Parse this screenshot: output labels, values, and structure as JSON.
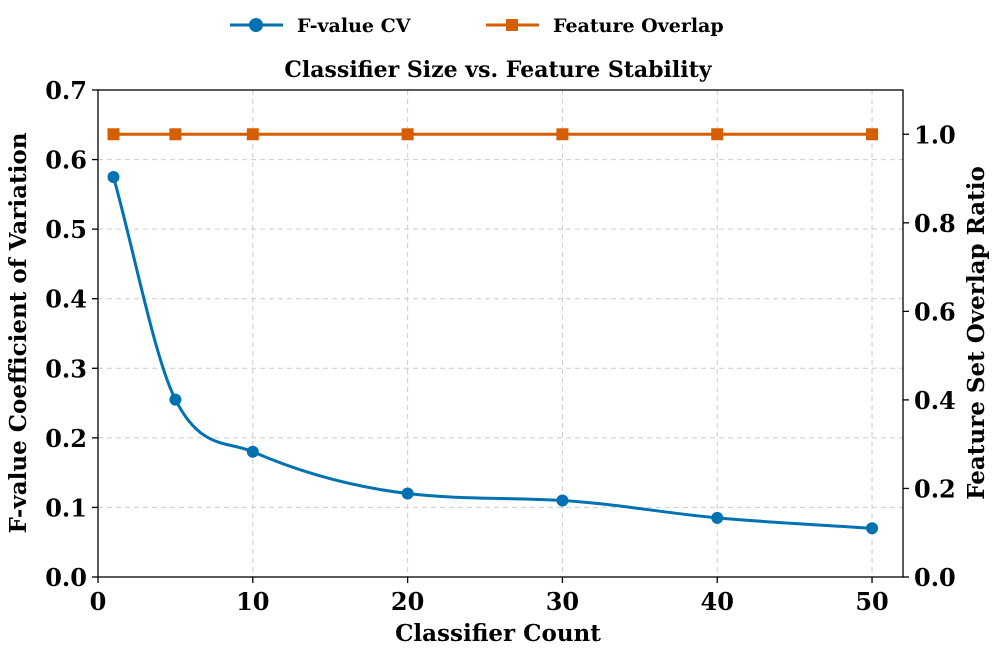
{
  "chart_data": {
    "type": "line",
    "title": "Classifier Size vs. Feature Stability",
    "xlabel": "Classifier Count",
    "ylabel_left": "F-value Coefficient of Variation",
    "ylabel_right": "Feature Set Overlap Ratio",
    "xlim": [
      0,
      52
    ],
    "ylim_left": [
      0,
      0.7
    ],
    "ylim_right": [
      0,
      1.1
    ],
    "x_ticks": [
      0,
      10,
      20,
      30,
      40,
      50
    ],
    "y_left_ticks": [
      "0.0",
      "0.1",
      "0.2",
      "0.3",
      "0.4",
      "0.5",
      "0.6",
      "0.7"
    ],
    "y_right_ticks": [
      "0.0",
      "0.2",
      "0.4",
      "0.6",
      "0.8",
      "1.0"
    ],
    "grid": true,
    "legend_position": "top-center",
    "series": [
      {
        "name": "F-value CV",
        "axis": "left",
        "color": "#0072B2",
        "marker": "circle",
        "x": [
          1,
          5,
          10,
          20,
          30,
          40,
          50
        ],
        "values": [
          0.575,
          0.255,
          0.18,
          0.12,
          0.11,
          0.085,
          0.07
        ]
      },
      {
        "name": "Feature Overlap",
        "axis": "right",
        "color": "#D55E00",
        "marker": "square",
        "x": [
          1,
          5,
          10,
          20,
          30,
          40,
          50
        ],
        "values": [
          1.0,
          1.0,
          1.0,
          1.0,
          1.0,
          1.0,
          1.0
        ]
      }
    ]
  }
}
